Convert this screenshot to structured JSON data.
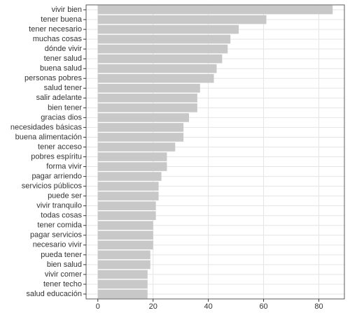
{
  "chart_data": {
    "type": "bar",
    "orientation": "horizontal",
    "categories": [
      "vivir bien",
      "tener buena",
      "tener necesario",
      "muchas cosas",
      "dónde vivir",
      "tener salud",
      "buena salud",
      "personas pobres",
      "salud tener",
      "salir adelante",
      "bien tener",
      "gracias dios",
      "necesidades básicas",
      "buena alimentación",
      "tener acceso",
      "pobres espíritu",
      "forma vivir",
      "pagar arriendo",
      "servicios públicos",
      "puede ser",
      "vivir tranquilo",
      "todas cosas",
      "tener comida",
      "pagar servicios",
      "necesario vivir",
      "pueda tener",
      "bien salud",
      "vivir comer",
      "tener techo",
      "salud educación"
    ],
    "values": [
      85,
      61,
      51,
      48,
      47,
      45,
      43,
      42,
      37,
      36,
      36,
      33,
      31,
      31,
      28,
      25,
      25,
      23,
      22,
      22,
      21,
      21,
      20,
      20,
      20,
      19,
      19,
      18,
      18,
      18
    ],
    "color": "#c8c8c8",
    "xlim": [
      -4.25,
      89.25
    ],
    "xticks": [
      0,
      20,
      40,
      60,
      80
    ],
    "grid": true
  }
}
